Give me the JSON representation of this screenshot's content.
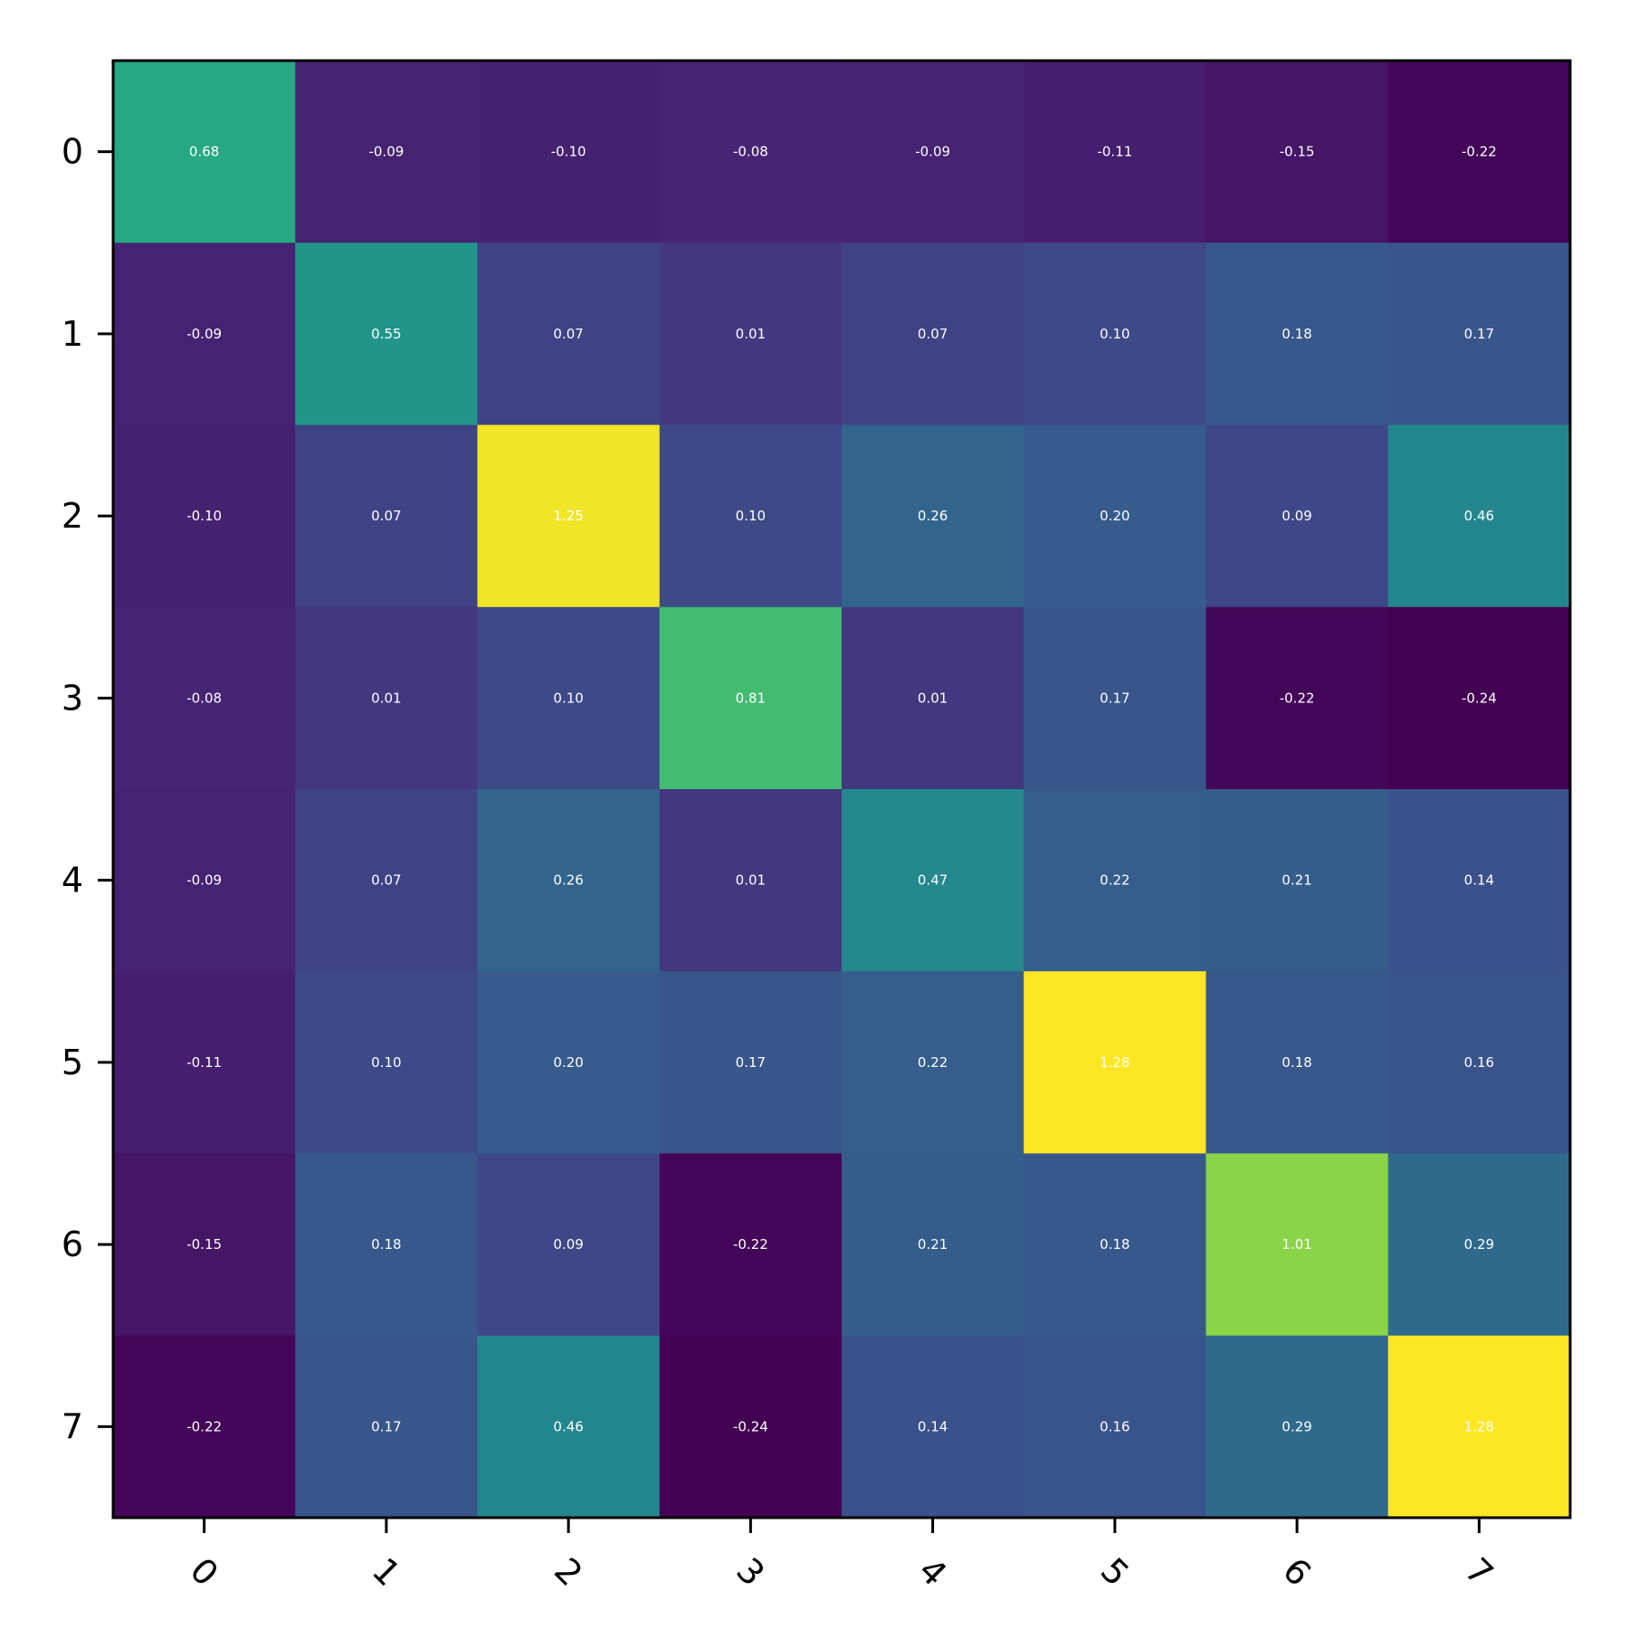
{
  "chart_data": {
    "type": "heatmap",
    "colormap": "viridis",
    "x_categories": [
      "0",
      "1",
      "2",
      "3",
      "4",
      "5",
      "6",
      "7"
    ],
    "y_categories": [
      "0",
      "1",
      "2",
      "3",
      "4",
      "5",
      "6",
      "7"
    ],
    "values": [
      [
        0.68,
        -0.09,
        -0.1,
        -0.08,
        -0.09,
        -0.11,
        -0.15,
        -0.22
      ],
      [
        -0.09,
        0.55,
        0.07,
        0.01,
        0.07,
        0.1,
        0.18,
        0.17
      ],
      [
        -0.1,
        0.07,
        1.25,
        0.1,
        0.26,
        0.2,
        0.09,
        0.46
      ],
      [
        -0.08,
        0.01,
        0.1,
        0.81,
        0.01,
        0.17,
        -0.22,
        -0.24
      ],
      [
        -0.09,
        0.07,
        0.26,
        0.01,
        0.47,
        0.22,
        0.21,
        0.14
      ],
      [
        -0.11,
        0.1,
        0.2,
        0.17,
        0.22,
        1.28,
        0.18,
        0.16
      ],
      [
        -0.15,
        0.18,
        0.09,
        -0.22,
        0.21,
        0.18,
        1.01,
        0.29
      ],
      [
        -0.22,
        0.17,
        0.46,
        -0.24,
        0.14,
        0.16,
        0.29,
        1.28
      ]
    ],
    "value_format": "2dp",
    "title": "",
    "xlabel": "",
    "ylabel": "",
    "x_tick_rotation_deg": 45
  }
}
